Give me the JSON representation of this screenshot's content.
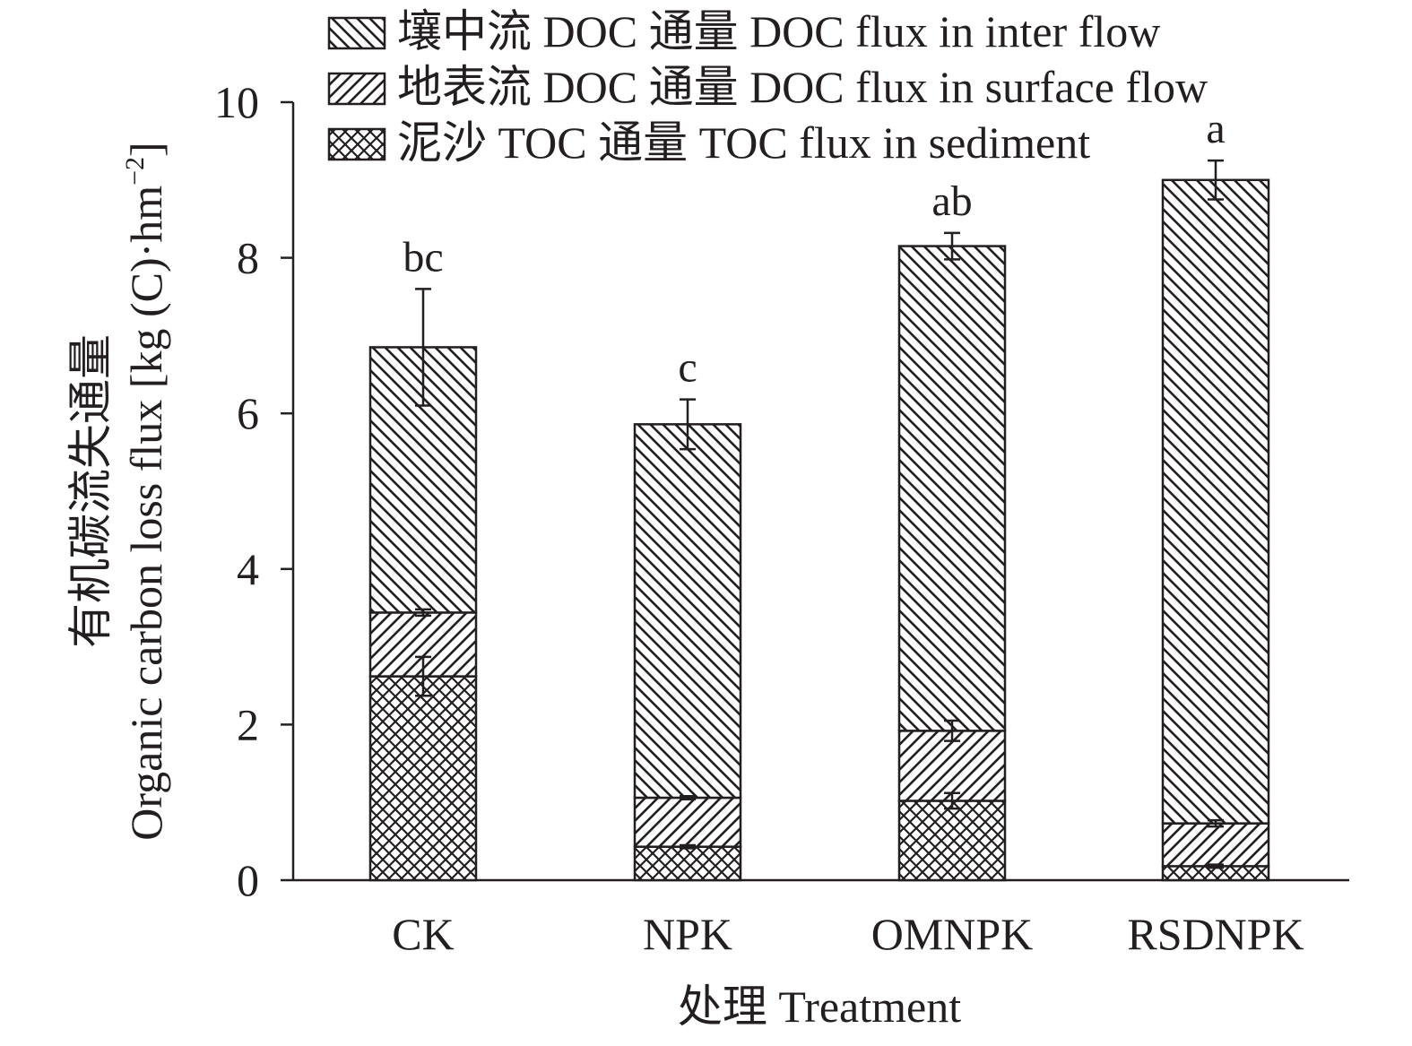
{
  "chart_data": {
    "type": "bar",
    "stacked": true,
    "categories": [
      "CK",
      "NPK",
      "OMNPK",
      "RSDNPK"
    ],
    "series": [
      {
        "name": "泥沙 TOC 通量 TOC flux in sediment",
        "pattern": "crosshatch",
        "values": [
          2.62,
          0.43,
          1.02,
          0.18
        ],
        "errors": [
          0.25,
          0.02,
          0.1,
          0.02
        ]
      },
      {
        "name": "地表流 DOC 通量 DOC flux in surface flow",
        "pattern": "forward-diagonal",
        "values": [
          0.82,
          0.63,
          0.9,
          0.55
        ],
        "errors": [
          0.04,
          0.02,
          0.13,
          0.04
        ]
      },
      {
        "name": "壤中流 DOC 通量 DOC flux in inter flow",
        "pattern": "back-diagonal",
        "values": [
          3.41,
          4.8,
          6.23,
          8.27
        ],
        "errors": [
          0.75,
          0.32,
          0.17,
          0.25
        ]
      }
    ],
    "significance_letters": [
      "bc",
      "c",
      "ab",
      "a"
    ],
    "ylabel_line1": "有机碳流失通量",
    "ylabel_line2_prefix": "Organic carbon loss flux [kg (C)·hm",
    "ylabel_line2_sup": "−2",
    "ylabel_line2_suffix": "]",
    "xlabel": "处理 Treatment",
    "ylim": [
      0,
      10
    ],
    "yticks": [
      0,
      2,
      4,
      6,
      8,
      10
    ],
    "legend_position": "top",
    "grid": false,
    "colors": {
      "ink": "#231f20",
      "fill": "#ffffff"
    }
  }
}
